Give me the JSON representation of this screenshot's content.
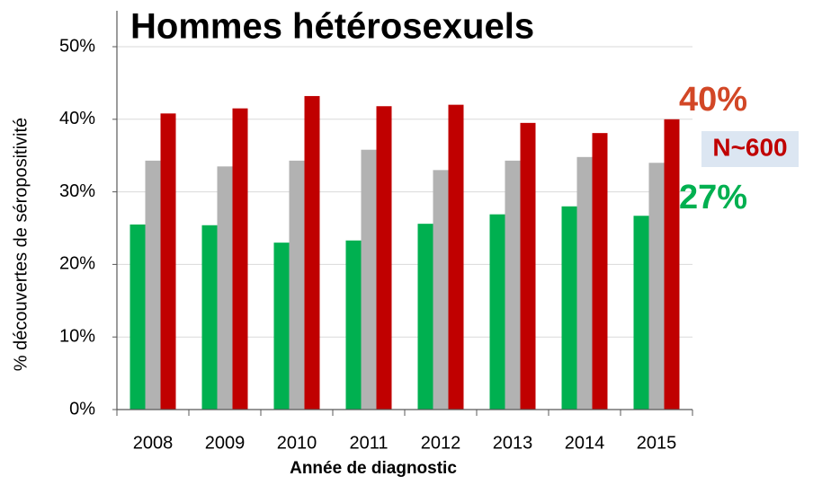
{
  "chart_data": {
    "type": "bar",
    "title": "Hommes hétérosexuels",
    "y_label": "% découvertes de séropositivité",
    "x_label": "Année de diagnostic",
    "categories": [
      "2008",
      "2009",
      "2010",
      "2011",
      "2012",
      "2013",
      "2014",
      "2015"
    ],
    "series": [
      {
        "color": "#00b050",
        "values": [
          25.5,
          25.4,
          23.0,
          23.3,
          25.6,
          26.9,
          28.0,
          26.7
        ]
      },
      {
        "color": "#b2b2b2",
        "values": [
          34.3,
          33.5,
          34.3,
          35.8,
          33.0,
          34.3,
          34.8,
          34.0
        ]
      },
      {
        "color": "#c00000",
        "values": [
          40.8,
          41.5,
          43.2,
          41.8,
          42.0,
          39.5,
          38.1,
          40.0
        ]
      }
    ],
    "ylim": [
      0,
      50
    ],
    "yticks": [
      {
        "value": 0,
        "label": "0%"
      },
      {
        "value": 10,
        "label": "10%"
      },
      {
        "value": 20,
        "label": "20%"
      },
      {
        "value": 30,
        "label": "30%"
      },
      {
        "value": 40,
        "label": "40%"
      },
      {
        "value": 50,
        "label": "50%"
      }
    ],
    "grid": true,
    "annotations": [
      "40%",
      "N~600",
      "27%"
    ]
  }
}
